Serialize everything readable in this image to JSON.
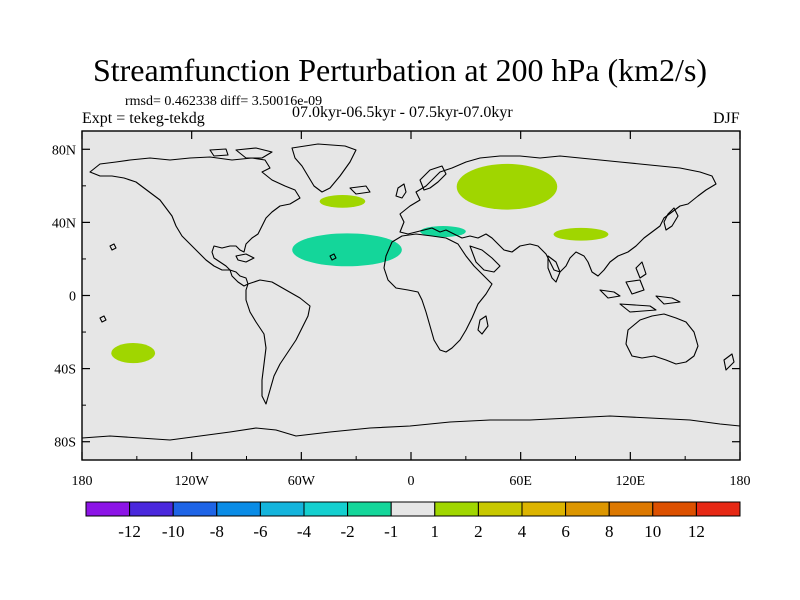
{
  "title": "Streamfunction Perturbation at 200 hPa (km2/s)",
  "stats": "rmsd= 0.462338 diff= 3.50016e-09",
  "expt": "Expt = tekeg-tekdg",
  "period": "07.0kyr-06.5kyr - 07.5kyr-07.0kyr",
  "season": "DJF",
  "map": {
    "lon_range": [
      -180,
      180
    ],
    "lat_range": [
      -90,
      90
    ],
    "background_color": "#e6e6e6",
    "lon_ticks": [
      "180",
      "120W",
      "60W",
      "0",
      "60E",
      "120E",
      "180"
    ],
    "lat_ticks": [
      "80N",
      "40N",
      "0",
      "40S",
      "80S"
    ],
    "features": [
      {
        "name": "N Europe / W Siberia positive anomaly",
        "lon": [
          25,
          80
        ],
        "lat": [
          47,
          72
        ],
        "color": "#a0d600"
      },
      {
        "name": "Central N Atlantic positive anomaly",
        "lon": [
          -50,
          -25
        ],
        "lat": [
          48,
          55
        ],
        "color": "#a0d600"
      },
      {
        "name": "Central Asia positive anomaly",
        "lon": [
          78,
          108
        ],
        "lat": [
          30,
          37
        ],
        "color": "#a0d600"
      },
      {
        "name": "S Pacific positive anomaly",
        "lon": [
          -164,
          -140
        ],
        "lat": [
          -37,
          -26
        ],
        "color": "#a0d600"
      },
      {
        "name": "Subtropical Atlantic negative anomaly",
        "lon": [
          -65,
          -5
        ],
        "lat": [
          16,
          34
        ],
        "color": "#14d69a"
      },
      {
        "name": "Mediterranean negative anomaly",
        "lon": [
          5,
          30
        ],
        "lat": [
          32,
          38
        ],
        "color": "#14d69a"
      }
    ]
  },
  "colorbar": {
    "colors": [
      "#8c14e6",
      "#4a28dc",
      "#1e64e6",
      "#0a8ce6",
      "#14b4dc",
      "#14cfcf",
      "#14d69a",
      "#e6e6e6",
      "#a0d600",
      "#c8c800",
      "#dcb400",
      "#dc9600",
      "#dc7800",
      "#dc5000",
      "#e62814"
    ],
    "labels": [
      "-12",
      "-10",
      "-8",
      "-6",
      "-4",
      "-2",
      "-1",
      "1",
      "2",
      "4",
      "6",
      "8",
      "10",
      "12"
    ]
  }
}
